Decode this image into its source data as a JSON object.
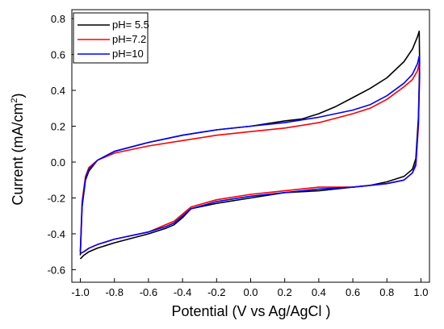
{
  "chart_data": {
    "type": "line",
    "xlabel": "Potential (V vs Ag/AgCl )",
    "ylabel": "Current (mA/cm",
    "ylabel_superscript": "2",
    "ylabel_suffix": ")",
    "xlim": [
      -1.05,
      1.05
    ],
    "ylim": [
      -0.67,
      0.85
    ],
    "x_ticks": [
      -1.0,
      -0.8,
      -0.6,
      -0.4,
      -0.2,
      0.0,
      0.2,
      0.4,
      0.6,
      0.8,
      1.0
    ],
    "x_tick_labels": [
      "-1.0",
      "-0.8",
      "-0.6",
      "-0.4",
      "-0.2",
      "0.0",
      "0.2",
      "0.4",
      "0.6",
      "0.8",
      "1.0"
    ],
    "y_ticks": [
      -0.6,
      -0.4,
      -0.2,
      0.0,
      0.2,
      0.4,
      0.6,
      0.8
    ],
    "y_tick_labels": [
      "-0.6",
      "-0.4",
      "-0.2",
      "0.0",
      "0.2",
      "0.4",
      "0.6",
      "0.8"
    ],
    "grid": false,
    "legend_position": "top-left",
    "series": [
      {
        "name": "pH= 5.5",
        "color": "#000000",
        "x": [
          -1.0,
          -0.99,
          -0.97,
          -0.95,
          -0.9,
          -0.8,
          -0.6,
          -0.4,
          -0.2,
          0.0,
          0.2,
          0.3,
          0.4,
          0.5,
          0.6,
          0.7,
          0.8,
          0.9,
          0.95,
          0.98,
          0.99,
          0.992,
          0.985,
          0.97,
          0.95,
          0.9,
          0.8,
          0.7,
          0.6,
          0.4,
          0.2,
          0.0,
          -0.2,
          -0.35,
          -0.4,
          -0.45,
          -0.5,
          -0.6,
          -0.8,
          -0.9,
          -0.95,
          -0.98,
          -1.0
        ],
        "y": [
          -0.52,
          -0.25,
          -0.1,
          -0.05,
          0.01,
          0.06,
          0.11,
          0.15,
          0.18,
          0.2,
          0.23,
          0.24,
          0.27,
          0.31,
          0.36,
          0.41,
          0.47,
          0.56,
          0.63,
          0.7,
          0.73,
          0.55,
          0.25,
          0.02,
          -0.04,
          -0.08,
          -0.11,
          -0.13,
          -0.14,
          -0.16,
          -0.17,
          -0.2,
          -0.23,
          -0.26,
          -0.31,
          -0.35,
          -0.37,
          -0.4,
          -0.45,
          -0.48,
          -0.5,
          -0.52,
          -0.54
        ]
      },
      {
        "name": "pH=7.2",
        "color": "#ff0000",
        "x": [
          -1.0,
          -0.99,
          -0.97,
          -0.95,
          -0.9,
          -0.8,
          -0.6,
          -0.4,
          -0.2,
          0.0,
          0.2,
          0.4,
          0.6,
          0.7,
          0.8,
          0.9,
          0.95,
          0.98,
          0.99,
          0.992,
          0.985,
          0.97,
          0.95,
          0.9,
          0.8,
          0.7,
          0.6,
          0.4,
          0.2,
          0.0,
          -0.2,
          -0.35,
          -0.4,
          -0.45,
          -0.5,
          -0.6,
          -0.8,
          -0.9,
          -0.95,
          -0.98,
          -1.0
        ],
        "y": [
          -0.5,
          -0.22,
          -0.08,
          -0.03,
          0.01,
          0.05,
          0.09,
          0.12,
          0.15,
          0.17,
          0.19,
          0.22,
          0.27,
          0.3,
          0.35,
          0.42,
          0.46,
          0.51,
          0.55,
          0.48,
          0.2,
          -0.02,
          -0.06,
          -0.1,
          -0.12,
          -0.13,
          -0.14,
          -0.14,
          -0.16,
          -0.18,
          -0.21,
          -0.25,
          -0.29,
          -0.33,
          -0.35,
          -0.39,
          -0.43,
          -0.46,
          -0.48,
          -0.5,
          -0.51
        ]
      },
      {
        "name": "pH=10",
        "color": "#0000ff",
        "x": [
          -1.0,
          -0.99,
          -0.97,
          -0.95,
          -0.9,
          -0.8,
          -0.6,
          -0.4,
          -0.2,
          0.0,
          0.2,
          0.4,
          0.6,
          0.7,
          0.8,
          0.9,
          0.95,
          0.98,
          0.99,
          0.992,
          0.985,
          0.97,
          0.95,
          0.9,
          0.8,
          0.7,
          0.6,
          0.4,
          0.2,
          0.0,
          -0.2,
          -0.35,
          -0.4,
          -0.45,
          -0.5,
          -0.6,
          -0.8,
          -0.9,
          -0.95,
          -0.98,
          -1.0
        ],
        "y": [
          -0.5,
          -0.24,
          -0.09,
          -0.04,
          0.01,
          0.06,
          0.11,
          0.15,
          0.18,
          0.2,
          0.22,
          0.25,
          0.29,
          0.32,
          0.37,
          0.44,
          0.49,
          0.55,
          0.59,
          0.5,
          0.22,
          -0.01,
          -0.06,
          -0.1,
          -0.12,
          -0.13,
          -0.14,
          -0.15,
          -0.17,
          -0.19,
          -0.22,
          -0.26,
          -0.3,
          -0.34,
          -0.36,
          -0.39,
          -0.43,
          -0.46,
          -0.48,
          -0.5,
          -0.51
        ]
      }
    ]
  }
}
